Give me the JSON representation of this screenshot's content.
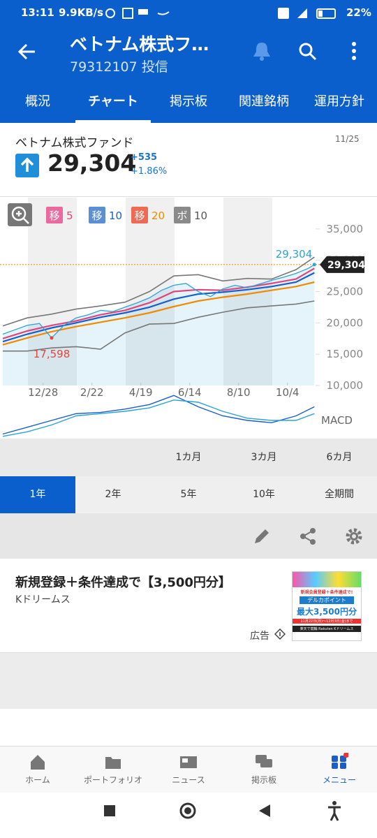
{
  "status_bar": {
    "time": "13:11",
    "speed": "9.9KB/s",
    "battery": "22%"
  },
  "header": {
    "title": "ベトナム株式フ…",
    "subtitle": "79312107 投信"
  },
  "tabs": {
    "items": [
      "概況",
      "チャート",
      "掲示板",
      "関連銘柄",
      "運用方針"
    ],
    "active": 1
  },
  "quote": {
    "name": "ベトナム株式ファンド",
    "date": "11/25",
    "price": "29,304",
    "change": "+535",
    "change_pct": "+1.86%"
  },
  "chart_data": {
    "type": "line",
    "xlim": [
      0,
      51.2
    ],
    "ylim": [
      10000,
      40000
    ],
    "xticks": [
      {
        "value": 6.6,
        "label": "12/28"
      },
      {
        "value": 14.6,
        "label": "2/22"
      },
      {
        "value": 22.6,
        "label": "4/19"
      },
      {
        "value": 30.6,
        "label": "6/14"
      },
      {
        "value": 38.6,
        "label": "8/10"
      },
      {
        "value": 46.6,
        "label": "10/4"
      }
    ],
    "yticks": [
      {
        "value": 10000,
        "label": "10,000"
      },
      {
        "value": 15000,
        "label": "15,000"
      },
      {
        "value": 20000,
        "label": "20,000"
      },
      {
        "value": 25000,
        "label": "25,000"
      },
      {
        "value": 30000,
        "label": "30,000"
      },
      {
        "value": 35000,
        "label": "35,000"
      }
    ],
    "series": [
      {
        "color": "#2aa3d8",
        "x": [
          0,
          2,
          4,
          6,
          8,
          10,
          12,
          14,
          16,
          18,
          20,
          22,
          24,
          26,
          28,
          30,
          32,
          34,
          36,
          38,
          40,
          42,
          44,
          46,
          48,
          50,
          51
        ],
        "values": [
          18200,
          18900,
          19600,
          19900,
          17598,
          19600,
          20800,
          21300,
          22000,
          21800,
          22500,
          23200,
          24000,
          25200,
          26000,
          26300,
          25000,
          24200,
          25400,
          26000,
          25600,
          26200,
          26800,
          27300,
          27900,
          28700,
          29304
        ]
      },
      {
        "label": "移",
        "period": 5,
        "color": "#e0457b",
        "chip": "#ea6aa0",
        "x": [
          0,
          4,
          8,
          12,
          16,
          20,
          24,
          28,
          32,
          36,
          40,
          44,
          48,
          51
        ],
        "values": [
          17500,
          18700,
          19600,
          20300,
          21300,
          22000,
          23200,
          25000,
          25300,
          25200,
          25700,
          26300,
          27000,
          28700
        ]
      },
      {
        "label": "移",
        "period": 10,
        "color": "#1a5fc8",
        "chip": "#5a8fd6",
        "x": [
          0,
          4,
          8,
          12,
          16,
          20,
          24,
          28,
          32,
          36,
          40,
          44,
          48,
          51
        ],
        "values": [
          17000,
          18200,
          19200,
          20000,
          20900,
          21600,
          22500,
          23800,
          24600,
          24900,
          25300,
          25800,
          26500,
          28000
        ]
      },
      {
        "label": "移",
        "period": 20,
        "color": "#f08a00",
        "chip": "#ef6a55",
        "x": [
          0,
          4,
          8,
          12,
          16,
          20,
          24,
          28,
          32,
          36,
          40,
          44,
          48,
          51
        ],
        "values": [
          16500,
          17600,
          18600,
          19400,
          20100,
          20800,
          21600,
          22600,
          23500,
          24100,
          24600,
          25200,
          25800,
          26500
        ]
      }
    ],
    "bands": {
      "label": "ボ",
      "period": 10,
      "color": "#777777",
      "chip": "#8a8a8a",
      "x": [
        0,
        4,
        8,
        12,
        16,
        20,
        24,
        28,
        32,
        36,
        40,
        44,
        48,
        51
      ],
      "upper": [
        19500,
        20800,
        21400,
        22200,
        22700,
        23300,
        25000,
        27500,
        27700,
        26700,
        27100,
        27000,
        28500,
        30500
      ],
      "lower": [
        15500,
        15500,
        16000,
        16200,
        15800,
        18400,
        19800,
        19900,
        20900,
        21700,
        22400,
        22700,
        23000,
        23500
      ]
    },
    "annotations": [
      {
        "x": 8,
        "value": 17598,
        "label": "17,598",
        "color": "#e0453b"
      },
      {
        "x": 51,
        "value": 29304,
        "label": "29,304",
        "color": "#2aa3d8"
      }
    ],
    "last": {
      "value": 29304,
      "label": "29,304"
    },
    "macd": {
      "label": "MACD",
      "ylim": [
        -1,
        1
      ],
      "x": [
        0,
        4,
        8,
        12,
        16,
        20,
        24,
        28,
        32,
        36,
        40,
        44,
        48,
        51
      ],
      "series": [
        {
          "color": "#1a5fc8",
          "values": [
            -0.8,
            -0.5,
            -0.2,
            0.1,
            0.15,
            0.3,
            0.5,
            0.9,
            0.4,
            0.0,
            -0.2,
            -0.3,
            0.0,
            0.4
          ]
        },
        {
          "color": "#2aa3d8",
          "values": [
            -0.9,
            -0.7,
            -0.4,
            0.0,
            0.1,
            0.2,
            0.35,
            0.7,
            0.6,
            0.2,
            -0.1,
            -0.2,
            -0.2,
            0.1
          ]
        }
      ]
    }
  },
  "ranges": {
    "row1": [
      "1カ月",
      "3カ月",
      "6カ月"
    ],
    "row2": [
      "1年",
      "2年",
      "5年",
      "10年",
      "全期間"
    ],
    "active": 0
  },
  "ad": {
    "title": "新規登録＋条件達成で【3,500円分】",
    "sponsor": "Kドリームス",
    "label": "広告",
    "image": {
      "line1": "新規会員登録＋条件達成で!",
      "line2": "デルカポイント",
      "line3": "最大3,500円分",
      "line4": "11月22日(月)～12月3日(金)まで",
      "line5": "楽天で競輪 Rakuten Kドリームス"
    }
  },
  "nav": {
    "items": [
      "ホーム",
      "ポートフォリオ",
      "ニュース",
      "掲示板",
      "メニュー"
    ],
    "active": 4
  }
}
